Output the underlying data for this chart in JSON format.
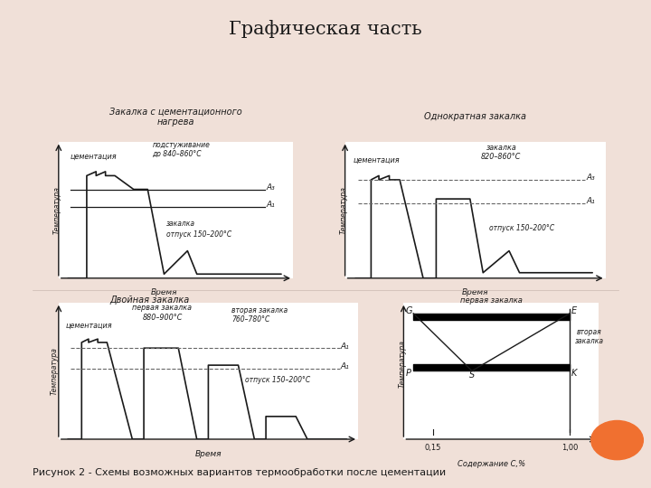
{
  "title": "Графическая часть",
  "caption": "Рисунок 2 - Схемы возможных вариантов термообработки после цементации",
  "bg_color": "#f0e0d8",
  "plot_bg": "#ffffff",
  "line_color": "#1a1a1a",
  "dashed_color": "#666666",
  "diagram1_title": "Закалка с цементационного\nнагрева",
  "diagram2_title": "Однократная закалка",
  "diagram3_title": "Двойная закалка"
}
